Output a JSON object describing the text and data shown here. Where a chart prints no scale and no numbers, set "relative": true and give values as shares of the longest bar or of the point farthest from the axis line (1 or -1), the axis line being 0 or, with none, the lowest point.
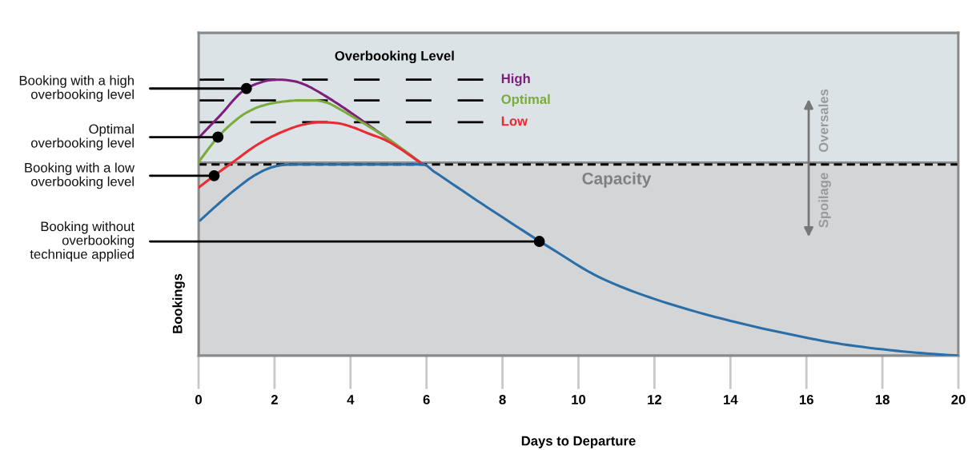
{
  "chart_data": {
    "type": "line",
    "relative": true,
    "xlabel": "Days to Departure",
    "ylabel": "Bookings",
    "legend_title": "Overbooking Level",
    "xlim": [
      0,
      20
    ],
    "xticks": [
      0,
      2,
      4,
      6,
      8,
      10,
      12,
      14,
      16,
      18,
      20
    ],
    "series": [
      {
        "name": "High",
        "color": "#7e1e7c",
        "x": [
          0,
          0.53,
          1.26,
          1.59,
          1.87,
          2.15,
          2.5,
          2.78,
          3.07,
          3.35,
          3.77,
          4.19,
          4.89,
          5.91
        ],
        "values": [
          0.789,
          0.865,
          0.968,
          0.988,
          0.998,
          1,
          0.995,
          0.983,
          0.963,
          0.94,
          0.903,
          0.863,
          0.795,
          0.693
        ]
      },
      {
        "name": "Optimal",
        "color": "#7aab3b",
        "x": [
          0,
          0.51,
          0.89,
          1.24,
          1.66,
          2.08,
          2.64,
          3.07,
          3.35,
          3.77,
          4.19,
          4.89,
          5.91
        ],
        "values": [
          0.702,
          0.792,
          0.843,
          0.879,
          0.905,
          0.918,
          0.925,
          0.925,
          0.918,
          0.889,
          0.855,
          0.795,
          0.693
        ]
      },
      {
        "name": "Low",
        "color": "#ec2a33",
        "x": [
          0,
          0.41,
          0.89,
          1.59,
          2.29,
          2.78,
          3.21,
          3.63,
          4.05,
          4.47,
          4.89,
          5.91
        ],
        "values": [
          0.609,
          0.652,
          0.7,
          0.768,
          0.816,
          0.838,
          0.846,
          0.843,
          0.828,
          0.805,
          0.783,
          0.693
        ]
      },
      {
        "color": "#2a6ea8",
        "x": [
          0.04,
          0.53,
          1.03,
          1.52,
          1.94,
          2.22,
          2.6,
          5.91,
          6.2,
          7.43,
          9.3,
          10.54,
          11.86,
          13.61,
          15.37,
          17.13,
          18.89,
          20
        ],
        "values": [
          0.49,
          0.551,
          0.609,
          0.657,
          0.683,
          0.691,
          0.693,
          0.693,
          0.667,
          0.553,
          0.387,
          0.285,
          0.212,
          0.14,
          0.083,
          0.038,
          0.011,
          0
        ]
      }
    ],
    "bands": [
      {
        "axis": "y",
        "from": 0,
        "to": 0.7,
        "label": "Spoilage",
        "color": "#d4d5d7"
      },
      {
        "axis": "y",
        "from": 0.7,
        "to": 1.17,
        "label": "Oversales",
        "color": "#dce3e7"
      }
    ],
    "ref_lines": [
      {
        "axis": "y",
        "value": 1,
        "color": "#000000",
        "line_style": "dashed"
      },
      {
        "axis": "y",
        "value": 0.925,
        "color": "#000000",
        "line_style": "dashed"
      },
      {
        "axis": "y",
        "value": 0.846,
        "color": "#000000",
        "line_style": "dashed"
      },
      {
        "axis": "y",
        "value": 0.693,
        "label": "Capacity",
        "color": "#000000",
        "line_style": "dashed"
      }
    ],
    "annotations": [
      {
        "text": "Booking with a high\noverbooking level",
        "x": 1.26,
        "y": 0.968
      },
      {
        "text": "Optimal\noverbooking level",
        "x": 0.51,
        "y": 0.792
      },
      {
        "text": "Booking with a low\noverbooking level",
        "x": 0.41,
        "y": 0.652
      },
      {
        "text": "Booking without\noverbooking\ntechnique applied",
        "x": 8.97,
        "y": 0.414
      }
    ]
  }
}
